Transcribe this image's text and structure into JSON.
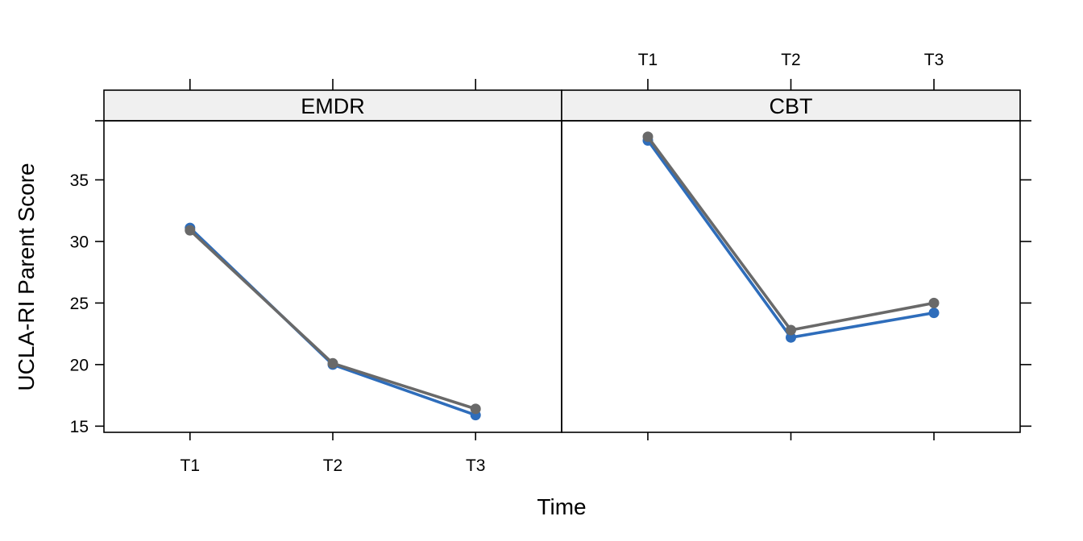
{
  "chart_data": {
    "type": "line",
    "xlabel": "Time",
    "ylabel": "UCLA-RI Parent Score",
    "categories": [
      "T1",
      "T2",
      "T3"
    ],
    "ylim": [
      14.5,
      39.8
    ],
    "y_ticks": [
      15,
      20,
      25,
      30,
      35
    ],
    "grid": false,
    "legend": "none",
    "panels": [
      {
        "label": "EMDR",
        "series": [
          {
            "color": "#2e6dbb",
            "values": [
              31.1,
              20.0,
              15.9
            ]
          },
          {
            "color": "#696969",
            "values": [
              30.9,
              20.1,
              16.4
            ]
          }
        ]
      },
      {
        "label": "CBT",
        "series": [
          {
            "color": "#2e6dbb",
            "values": [
              38.2,
              22.2,
              24.2
            ]
          },
          {
            "color": "#696969",
            "values": [
              38.5,
              22.8,
              25.0
            ]
          }
        ]
      }
    ]
  }
}
